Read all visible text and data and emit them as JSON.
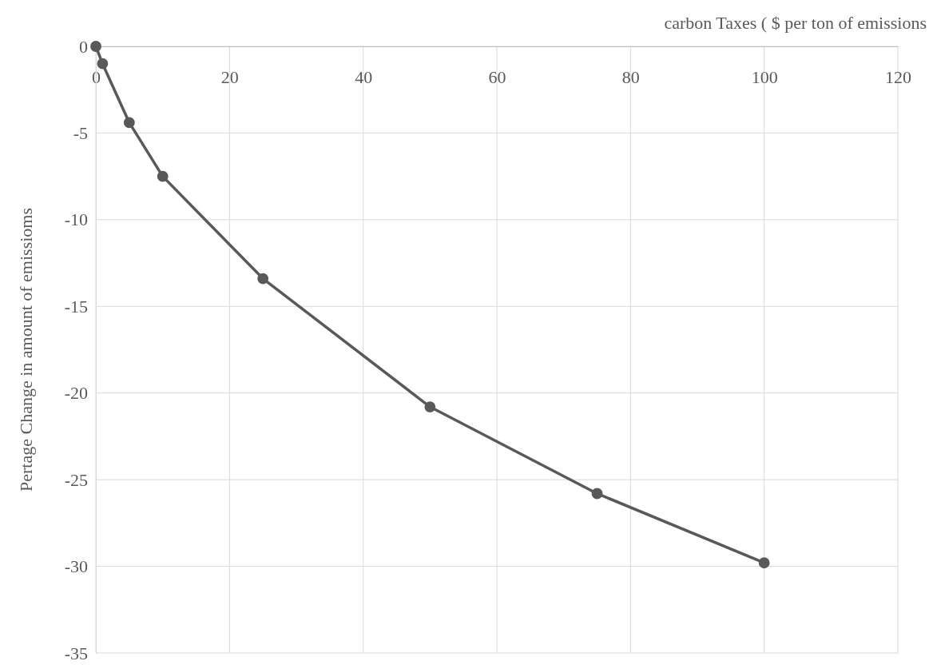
{
  "chart_data": {
    "type": "line",
    "xlabel": "carbon Taxes ( $ per ton of emissions",
    "ylabel": "Pertage Change in amount of emissioms",
    "x": [
      0,
      1,
      5,
      10,
      25,
      50,
      75,
      100
    ],
    "series": [
      {
        "color": "#595959",
        "values": [
          0,
          -1.0,
          -4.4,
          -7.5,
          -13.4,
          -20.8,
          -25.8,
          -29.8
        ]
      }
    ],
    "xlim": [
      0,
      120
    ],
    "xticks": [
      0,
      20,
      40,
      60,
      80,
      100,
      120
    ],
    "ylim": [
      -35,
      0
    ],
    "yticks": [
      -35,
      -30,
      -25,
      -20,
      -15,
      -10,
      -5,
      0
    ],
    "grid": true,
    "marker": "circle",
    "line_style": "solid"
  }
}
